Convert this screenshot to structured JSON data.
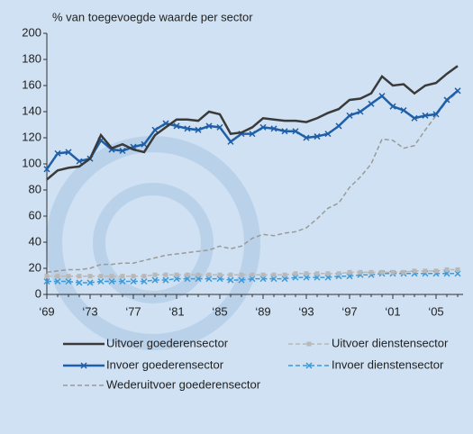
{
  "chart_data": {
    "type": "line",
    "title": "% van toegevoegde waarde per sector",
    "categories": [
      "‘69",
      null,
      null,
      null,
      "‘73",
      null,
      null,
      null,
      "‘77",
      null,
      null,
      null,
      "‘81",
      null,
      null,
      null,
      "‘85",
      null,
      null,
      null,
      "‘89",
      null,
      null,
      null,
      "‘93",
      null,
      null,
      null,
      "‘97",
      null,
      null,
      null,
      "‘01",
      null,
      null,
      null,
      "‘05",
      null,
      null
    ],
    "ylim": [
      0,
      200
    ],
    "yticks": [
      0,
      20,
      40,
      60,
      80,
      100,
      120,
      140,
      160,
      180,
      200
    ],
    "series": [
      {
        "name": "Uitvoer goederensector",
        "color": "#3a3a3a",
        "dash": false,
        "marker": "none",
        "values": [
          88,
          95,
          97,
          98,
          104,
          122,
          112,
          115,
          111,
          109,
          122,
          128,
          134,
          134,
          133,
          140,
          138,
          123,
          124,
          128,
          135,
          134,
          133,
          133,
          132,
          135,
          139,
          142,
          149,
          150,
          154,
          167,
          160,
          161,
          154,
          160,
          162,
          169,
          175
        ]
      },
      {
        "name": "Invoer goederensector",
        "color": "#1f5fa8",
        "dash": false,
        "marker": "x",
        "values": [
          96,
          108,
          109,
          102,
          104,
          118,
          111,
          110,
          113,
          115,
          126,
          131,
          129,
          127,
          126,
          129,
          128,
          117,
          123,
          123,
          128,
          127,
          125,
          125,
          120,
          121,
          123,
          129,
          137,
          140,
          146,
          152,
          144,
          141,
          135,
          137,
          138,
          149,
          156
        ]
      },
      {
        "name": "Wederuitvoer goederensector",
        "color": "#9a9a9a",
        "dash": true,
        "marker": "none",
        "values": [
          17,
          18,
          19,
          19,
          20,
          23,
          23,
          24,
          24,
          26,
          28,
          30,
          31,
          32,
          33,
          34,
          37,
          35,
          37,
          43,
          46,
          45,
          47,
          48,
          51,
          58,
          66,
          70,
          82,
          90,
          100,
          119,
          118,
          112,
          114,
          126,
          137,
          148,
          155
        ]
      },
      {
        "name": "Uitvoer dienstensector",
        "color": "#b8b8b8",
        "dash": true,
        "marker": "square",
        "values": [
          14,
          14,
          14,
          14,
          14,
          14,
          14,
          14,
          14,
          14,
          15,
          15,
          15,
          15,
          15,
          15,
          15,
          15,
          15,
          15,
          15,
          15,
          15,
          16,
          16,
          16,
          16,
          16,
          17,
          17,
          17,
          17,
          17,
          17,
          18,
          18,
          18,
          19,
          19
        ]
      },
      {
        "name": "Invoer dienstensector",
        "color": "#3d9ad8",
        "dash": true,
        "marker": "x",
        "values": [
          10,
          10,
          10,
          9,
          9,
          10,
          10,
          10,
          10,
          10,
          11,
          11,
          12,
          12,
          12,
          12,
          12,
          11,
          11,
          12,
          12,
          12,
          12,
          13,
          13,
          13,
          13,
          14,
          14,
          15,
          15,
          16,
          16,
          16,
          16,
          16,
          16,
          16,
          16
        ]
      }
    ]
  }
}
